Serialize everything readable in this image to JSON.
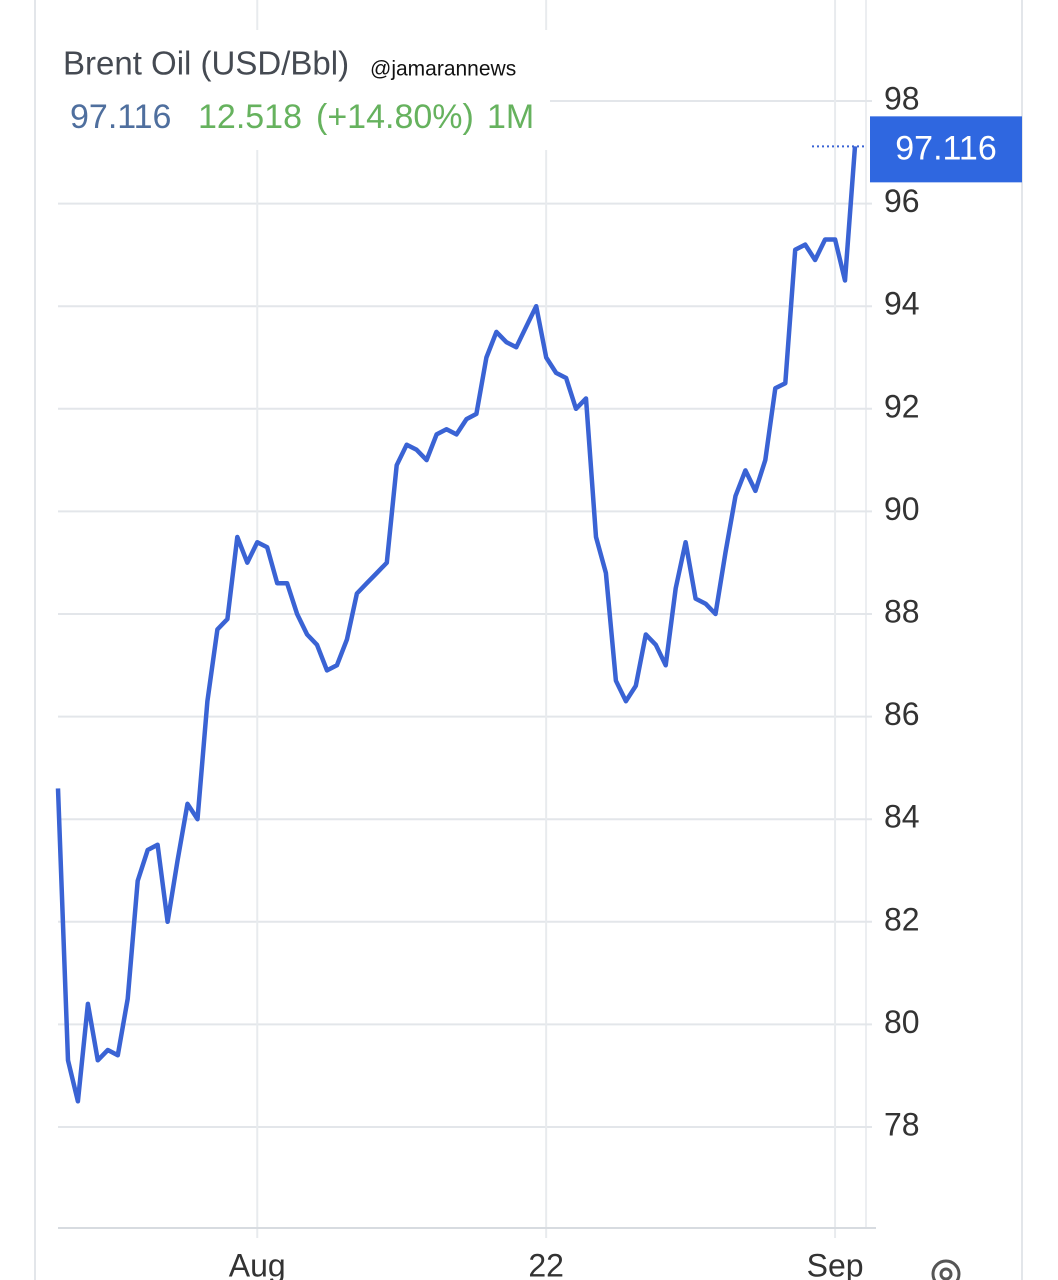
{
  "chart_data": {
    "type": "line",
    "title": "Brent Oil (USD/Bbl)",
    "watermark": "@jamarannews",
    "change": "12.518",
    "change_pct": "(+14.80%)",
    "period": "1M",
    "categories": [
      null,
      null,
      null,
      null,
      null,
      null,
      null,
      null,
      null,
      null,
      null,
      null,
      null,
      null,
      null,
      null,
      null,
      null,
      null,
      null,
      "Aug",
      null,
      null,
      null,
      null,
      null,
      null,
      null,
      null,
      null,
      null,
      null,
      null,
      null,
      null,
      null,
      null,
      null,
      null,
      null,
      null,
      null,
      null,
      null,
      null,
      null,
      null,
      null,
      null,
      "22",
      null,
      null,
      null,
      null,
      null,
      null,
      null,
      null,
      null,
      null,
      null,
      null,
      null,
      null,
      null,
      null,
      null,
      null,
      null,
      null,
      null,
      null,
      null,
      null,
      null,
      null,
      null,
      null,
      "Sep",
      null,
      null
    ],
    "series": [
      {
        "name": "Brent Oil",
        "color": "#3a63d4",
        "values": [
          84.6,
          79.3,
          78.5,
          80.4,
          79.3,
          79.5,
          79.4,
          80.5,
          82.8,
          83.4,
          83.5,
          82.0,
          83.2,
          84.3,
          84.0,
          86.3,
          87.7,
          87.9,
          89.5,
          89.0,
          89.4,
          89.3,
          88.6,
          88.6,
          88.0,
          87.6,
          87.4,
          86.9,
          87.0,
          87.5,
          88.4,
          88.6,
          88.8,
          89.0,
          90.9,
          91.3,
          91.2,
          91.0,
          91.5,
          91.6,
          91.5,
          91.8,
          91.9,
          93.0,
          93.5,
          93.3,
          93.2,
          93.6,
          94.0,
          93.0,
          92.7,
          92.6,
          92.0,
          92.2,
          89.5,
          88.8,
          86.7,
          86.3,
          86.6,
          87.6,
          87.4,
          87.0,
          88.5,
          89.4,
          88.3,
          88.2,
          88.0,
          89.2,
          90.3,
          90.8,
          90.4,
          91.0,
          92.4,
          92.5,
          95.1,
          95.2,
          94.9,
          95.3,
          95.3,
          94.5,
          97.116
        ]
      }
    ],
    "ylim": [
      76,
      100
    ],
    "yticks": [
      78,
      80,
      82,
      84,
      86,
      88,
      90,
      92,
      94,
      96,
      98
    ],
    "grid": true
  }
}
